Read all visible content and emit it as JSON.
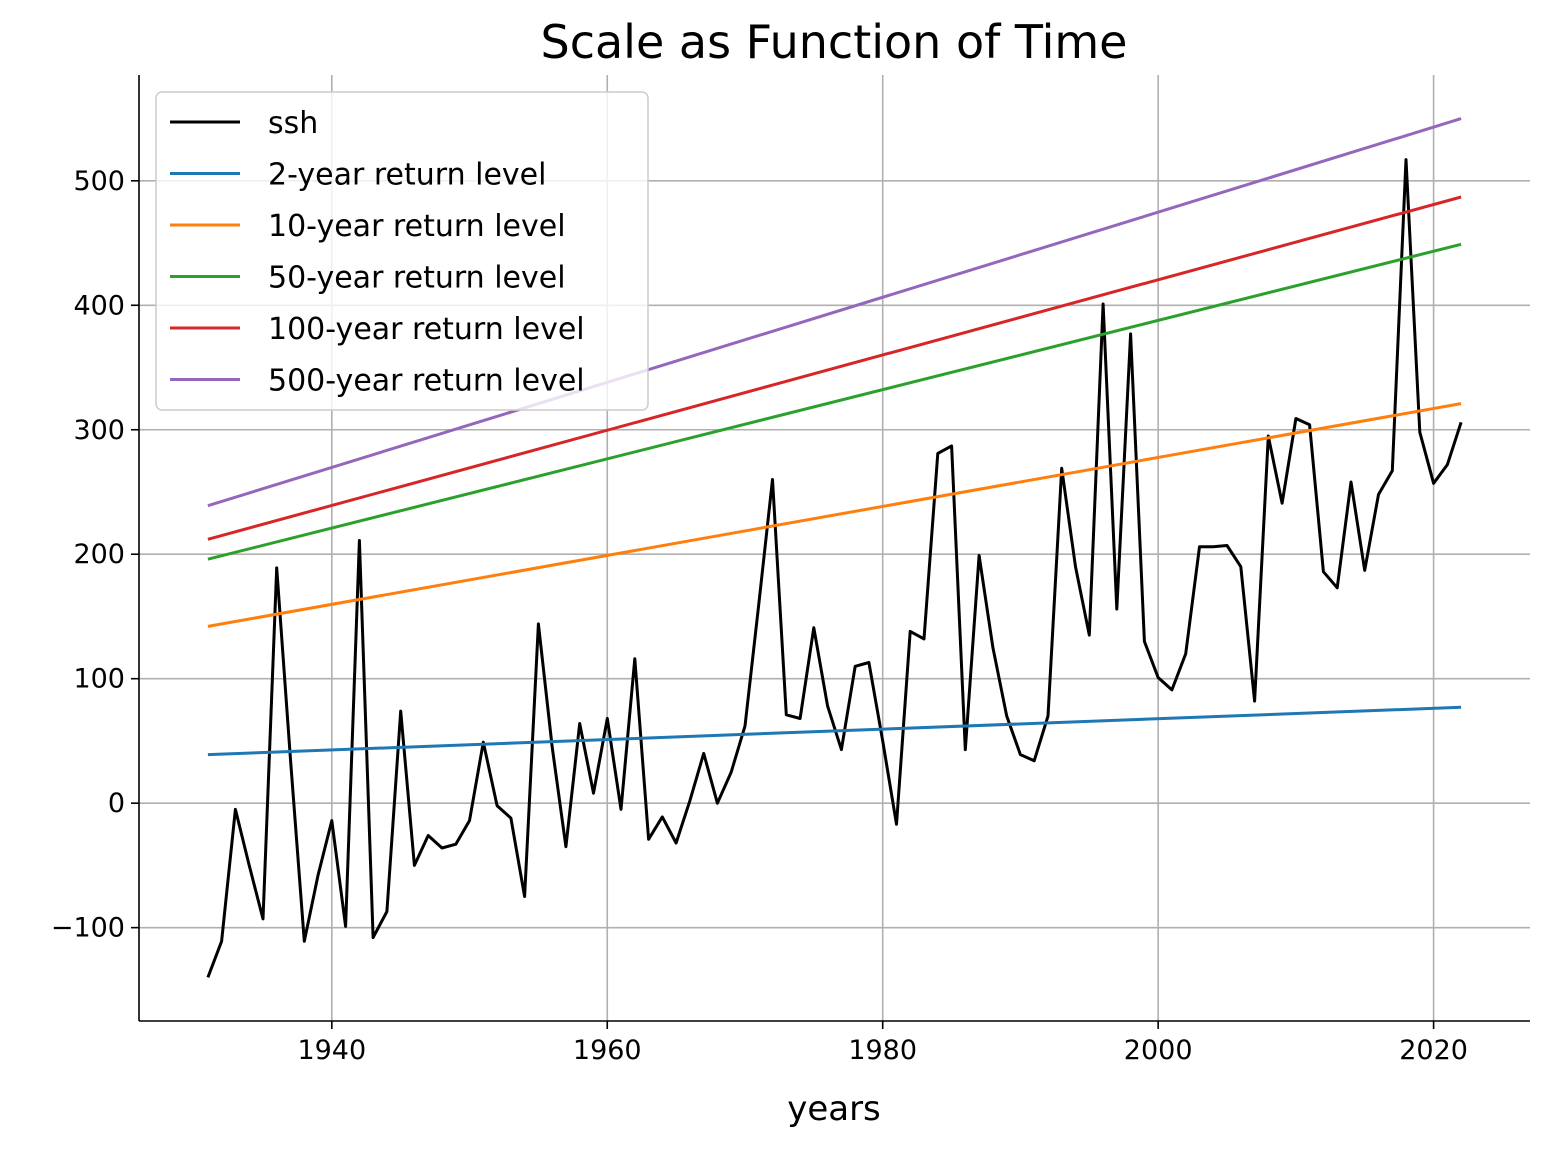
{
  "chart_data": {
    "type": "line",
    "title": "Scale as Function of Time",
    "xlabel": "years",
    "ylabel": "",
    "xlim": [
      1926,
      2027
    ],
    "ylim": [
      -175,
      585
    ],
    "xticks": [
      1940,
      1960,
      1980,
      2000,
      2020
    ],
    "yticks": [
      -100,
      0,
      100,
      200,
      300,
      400,
      500
    ],
    "xtick_labels": [
      "1940",
      "1960",
      "1980",
      "2000",
      "2020"
    ],
    "ytick_labels": [
      "−100",
      "0",
      "100",
      "200",
      "300",
      "400",
      "500"
    ],
    "grid": true,
    "legend_position": "upper-left",
    "series": [
      {
        "name": "ssh",
        "color": "#000000",
        "x": [
          1931,
          1932,
          1933,
          1934,
          1935,
          1936,
          1937,
          1938,
          1939,
          1940,
          1941,
          1942,
          1943,
          1944,
          1945,
          1946,
          1947,
          1948,
          1949,
          1950,
          1951,
          1952,
          1953,
          1954,
          1955,
          1956,
          1957,
          1958,
          1959,
          1960,
          1961,
          1962,
          1963,
          1964,
          1965,
          1966,
          1967,
          1968,
          1969,
          1970,
          1971,
          1972,
          1973,
          1974,
          1975,
          1976,
          1977,
          1978,
          1979,
          1980,
          1981,
          1982,
          1983,
          1984,
          1985,
          1986,
          1987,
          1988,
          1989,
          1990,
          1991,
          1992,
          1993,
          1994,
          1995,
          1996,
          1997,
          1998,
          1999,
          2000,
          2001,
          2002,
          2003,
          2004,
          2005,
          2006,
          2007,
          2008,
          2009,
          2010,
          2011,
          2012,
          2013,
          2014,
          2015,
          2016,
          2017,
          2018,
          2019,
          2020,
          2021,
          2022
        ],
        "y": [
          -140,
          -111,
          -5,
          -50,
          -93,
          189,
          35,
          -111,
          -58,
          -14,
          -99,
          211,
          -108,
          -87,
          74,
          -50,
          -26,
          -36,
          -33,
          -14,
          49,
          -2,
          -12,
          -75,
          144,
          45,
          -35,
          64,
          8,
          68,
          -5,
          116,
          -29,
          -11,
          -32,
          2,
          40,
          0,
          25,
          62,
          160,
          260,
          71,
          68,
          141,
          78,
          43,
          110,
          113,
          50,
          -17,
          138,
          132,
          281,
          287,
          43,
          199,
          125,
          70,
          39,
          34,
          70,
          269,
          190,
          135,
          401,
          156,
          377,
          130,
          101,
          91,
          120,
          206,
          206,
          207,
          190,
          82,
          295,
          241,
          309,
          304,
          186,
          173,
          258,
          187,
          248,
          267,
          517,
          298,
          257,
          272,
          306
        ]
      },
      {
        "name": "2-year return level",
        "color": "#1f77b4",
        "x": [
          1931,
          2022
        ],
        "y": [
          39,
          77
        ]
      },
      {
        "name": "10-year return level",
        "color": "#ff7f0e",
        "x": [
          1931,
          2022
        ],
        "y": [
          142,
          321
        ]
      },
      {
        "name": "50-year return level",
        "color": "#2ca02c",
        "x": [
          1931,
          2022
        ],
        "y": [
          196,
          449
        ]
      },
      {
        "name": "100-year return level",
        "color": "#d62728",
        "x": [
          1931,
          2022
        ],
        "y": [
          212,
          487
        ]
      },
      {
        "name": "500-year return level",
        "color": "#9467bd",
        "x": [
          1931,
          2022
        ],
        "y": [
          239,
          550
        ]
      }
    ]
  }
}
